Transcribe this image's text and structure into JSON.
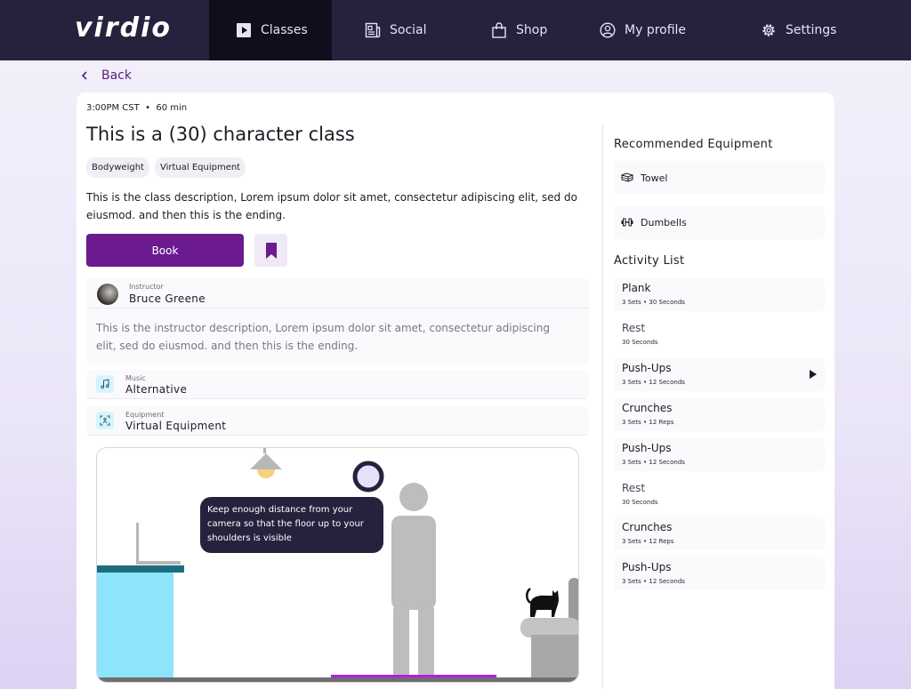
{
  "nav": {
    "logo": "virdio",
    "items": [
      {
        "label": "Classes",
        "icon": "play-square-icon",
        "active": true
      },
      {
        "label": "Social",
        "icon": "newspaper-icon"
      },
      {
        "label": "Shop",
        "icon": "shopping-bag-icon"
      },
      {
        "label": "My profile",
        "icon": "user-circle-icon"
      },
      {
        "label": "Settings",
        "icon": "gear-icon"
      }
    ]
  },
  "back_label": "Back",
  "class": {
    "meta": "3:00PM CST  •  60 min",
    "title": "This is a (30) character class",
    "tags": [
      "Bodyweight",
      "Virtual Equipment"
    ],
    "description": "This is the class description, Lorem ipsum dolor sit amet, consectetur adipiscing elit, sed do eiusmod. and then this is the ending.",
    "book_label": "Book"
  },
  "instructor": {
    "label": "Instructor",
    "name": "Bruce Greene",
    "description": "This is the instructor description, Lorem ipsum dolor sit amet, consectetur adipiscing elit, sed do eiusmod. and then this is the ending."
  },
  "music": {
    "label": "Music",
    "value": "Alternative"
  },
  "equipment": {
    "label": "Equipment",
    "value": "Virtual Equipment"
  },
  "camera_tip": "Keep enough distance from your camera so that the floor up to your shoulders is visible",
  "recommended": {
    "title": "Recommended Equipment",
    "items": [
      {
        "label": "Towel",
        "icon": "towel-icon"
      },
      {
        "label": "Dumbells",
        "icon": "dumbbell-icon"
      }
    ]
  },
  "activity": {
    "title": "Activity List",
    "items": [
      {
        "name": "Plank",
        "detail": "3 Sets • 30 Seconds"
      },
      {
        "name": "Rest",
        "detail": "30 Seconds"
      },
      {
        "name": "Push-Ups",
        "detail": "3 Sets • 12 Seconds"
      },
      {
        "name": "Crunches",
        "detail": "3 Sets • 12 Reps"
      },
      {
        "name": "Push-Ups",
        "detail": "3 Sets • 12 Seconds"
      },
      {
        "name": "Rest",
        "detail": "30 Seconds"
      },
      {
        "name": "Crunches",
        "detail": "3 Sets • 12 Reps"
      },
      {
        "name": "Push-Ups",
        "detail": "3 Sets • 12 Seconds"
      }
    ]
  },
  "colors": {
    "nav_bg": "#25223d",
    "accent": "#6b1a8f",
    "icon_bg": "#d7f4fc"
  }
}
